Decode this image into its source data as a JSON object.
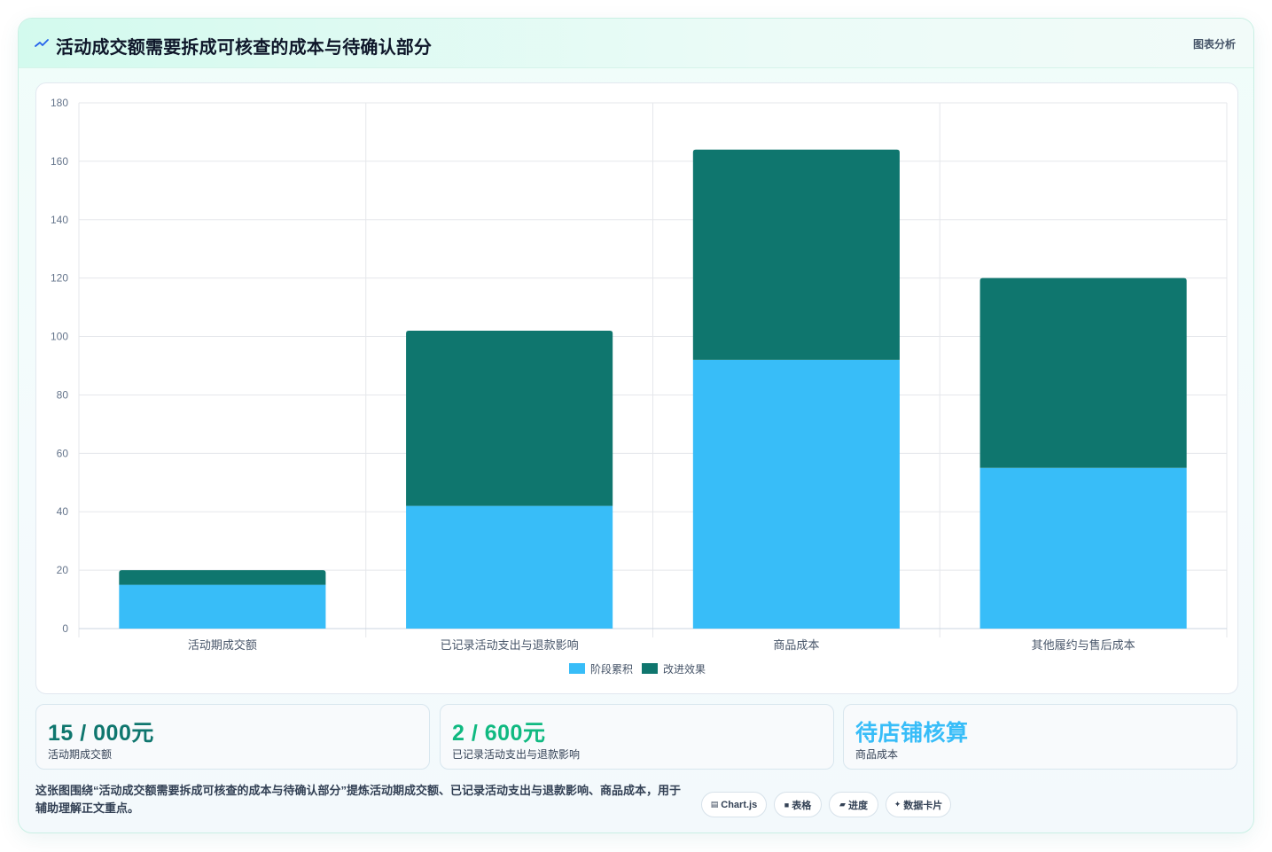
{
  "header": {
    "title": "活动成交额需要拆成可核查的成本与待确认部分",
    "tag": "图表分析",
    "icon": "chart-line-icon",
    "accent": "#2563eb"
  },
  "chart_data": {
    "type": "bar",
    "stacked": true,
    "categories": [
      "活动期成交额",
      "已记录活动支出与退款影响",
      "商品成本",
      "其他履约与售后成本"
    ],
    "series": [
      {
        "name": "阶段累积",
        "color": "#38bdf8",
        "values": [
          15,
          42,
          92,
          55
        ]
      },
      {
        "name": "改进效果",
        "color": "#0f766e",
        "values": [
          5,
          60,
          72,
          65
        ]
      }
    ],
    "ylim": [
      0,
      180
    ],
    "yticks": [
      0,
      20,
      40,
      60,
      80,
      100,
      120,
      140,
      160,
      180
    ],
    "grid": true,
    "legend": "bottom"
  },
  "stats": [
    {
      "value": "15 / 000元",
      "label": "活动期成交额",
      "color": "#0f766e"
    },
    {
      "value": "2 / 600元",
      "label": "已记录活动支出与退款影响",
      "color": "#10b981"
    },
    {
      "value": "待店铺核算",
      "label": "商品成本",
      "color": "#38bdf8"
    }
  ],
  "footer": {
    "text": "这张图围绕“活动成交额需要拆成可核查的成本与待确认部分”提炼活动期成交额、已记录活动支出与退款影响、商品成本，用于辅助理解正文重点。",
    "chips": [
      {
        "icon": "▤",
        "label": "Chart.js"
      },
      {
        "icon": "■",
        "label": "表格"
      },
      {
        "icon": "▰",
        "label": "进度"
      },
      {
        "icon": "✦",
        "label": "数据卡片"
      }
    ]
  }
}
